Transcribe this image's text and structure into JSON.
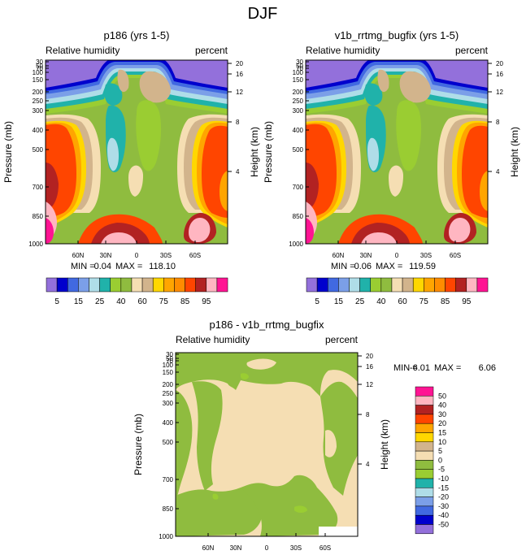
{
  "figure_title": "DJF",
  "chart_data": [
    {
      "type": "heatmap",
      "title": "p186 (yrs 1-5)",
      "left_label": "Relative humidity",
      "right_label": "percent",
      "xlabel": "",
      "ylabel": "Pressure (mb)",
      "y2label": "Height (km)",
      "x_ticks": [
        "60N",
        "30N",
        "0",
        "30S",
        "60S"
      ],
      "y_ticks": [
        "30",
        "50",
        "70",
        "100",
        "150",
        "200",
        "250",
        "300",
        "400",
        "500",
        "700",
        "850",
        "1000"
      ],
      "y2_ticks": [
        "20",
        "16",
        "12",
        "8",
        "4"
      ],
      "min_label": "MIN =",
      "min_value": "0.04",
      "max_label": "MAX =",
      "max_value": "118.10",
      "colorbar": {
        "orientation": "horizontal",
        "labels": [
          "5",
          "15",
          "25",
          "40",
          "60",
          "75",
          "85",
          "95"
        ],
        "colors": [
          "#9370db",
          "#0000cd",
          "#4169e1",
          "#7b9fe8",
          "#afdde8",
          "#20b2aa",
          "#9acd32",
          "#8fbc3f",
          "#f5deb3",
          "#d2b48c",
          "#ffd700",
          "#ffa500",
          "#ff8c00",
          "#ff4500",
          "#b22222",
          "#ffb6c1",
          "#ff1493"
        ]
      }
    },
    {
      "type": "heatmap",
      "title": "v1b_rrtmg_bugfix (yrs 1-5)",
      "left_label": "Relative humidity",
      "right_label": "percent",
      "xlabel": "",
      "ylabel": "Pressure (mb)",
      "y2label": "Height (km)",
      "x_ticks": [
        "60N",
        "30N",
        "0",
        "30S",
        "60S"
      ],
      "y_ticks": [
        "30",
        "50",
        "70",
        "100",
        "150",
        "200",
        "250",
        "300",
        "400",
        "500",
        "700",
        "850",
        "1000"
      ],
      "y2_ticks": [
        "20",
        "16",
        "12",
        "8",
        "4"
      ],
      "min_label": "MIN =",
      "min_value": "0.06",
      "max_label": "MAX =",
      "max_value": "119.59",
      "colorbar": {
        "orientation": "horizontal",
        "labels": [
          "5",
          "15",
          "25",
          "40",
          "60",
          "75",
          "85",
          "95"
        ],
        "colors": [
          "#9370db",
          "#0000cd",
          "#4169e1",
          "#7b9fe8",
          "#afdde8",
          "#20b2aa",
          "#9acd32",
          "#8fbc3f",
          "#f5deb3",
          "#d2b48c",
          "#ffd700",
          "#ffa500",
          "#ff8c00",
          "#ff4500",
          "#b22222",
          "#ffb6c1",
          "#ff1493"
        ]
      }
    },
    {
      "type": "heatmap",
      "title": "p186 - v1b_rrtmg_bugfix",
      "left_label": "Relative humidity",
      "right_label": "percent",
      "xlabel": "",
      "ylabel": "Pressure (mb)",
      "y2label": "Height (km)",
      "x_ticks": [
        "60N",
        "30N",
        "0",
        "30S",
        "60S"
      ],
      "y_ticks": [
        "30",
        "50",
        "70",
        "100",
        "150",
        "200",
        "250",
        "300",
        "400",
        "500",
        "700",
        "850",
        "1000"
      ],
      "y2_ticks": [
        "20",
        "16",
        "12",
        "8",
        "4"
      ],
      "min_label": "MIN =",
      "min_value": "-6.01",
      "max_label": "MAX =",
      "max_value": "6.06",
      "colorbar": {
        "orientation": "vertical",
        "labels": [
          "50",
          "40",
          "30",
          "20",
          "15",
          "10",
          "5",
          "0",
          "-5",
          "-10",
          "-15",
          "-20",
          "-30",
          "-40",
          "-50"
        ],
        "colors": [
          "#ff1493",
          "#ffb6c1",
          "#b22222",
          "#ff4500",
          "#ffa500",
          "#ffd700",
          "#d2b48c",
          "#f5deb3",
          "#8fbc3f",
          "#9acd32",
          "#20b2aa",
          "#afdde8",
          "#7b9fe8",
          "#4169e1",
          "#0000cd",
          "#9370db"
        ]
      }
    }
  ]
}
